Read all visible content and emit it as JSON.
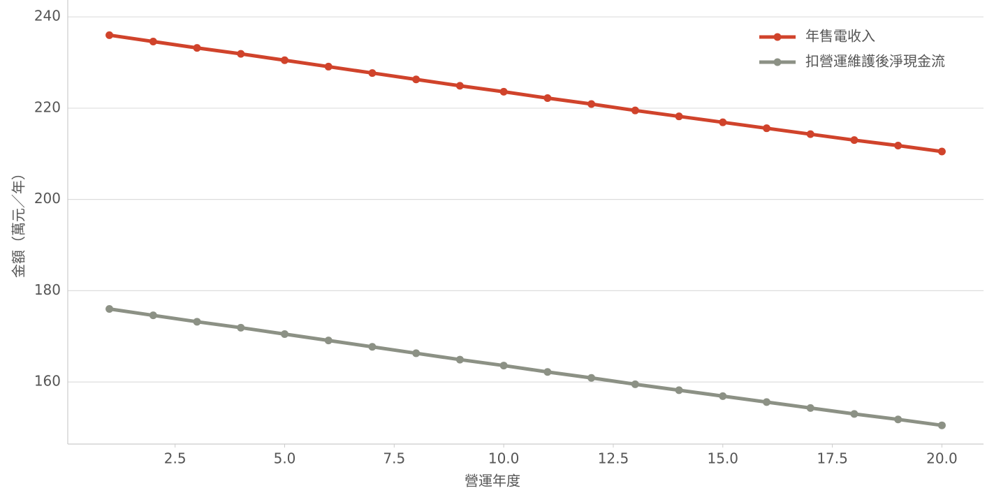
{
  "chart_data": {
    "type": "line",
    "x_label": "營運年度",
    "y_label": "金額（萬元／年）",
    "x": [
      1,
      2,
      3,
      4,
      5,
      6,
      7,
      8,
      9,
      10,
      11,
      12,
      13,
      14,
      15,
      16,
      17,
      18,
      19,
      20
    ],
    "series": [
      {
        "name": "年售電收入",
        "color": "#d0432b",
        "values": [
          236.0,
          234.6,
          233.2,
          231.9,
          230.5,
          229.1,
          227.7,
          226.3,
          224.9,
          223.6,
          222.2,
          220.9,
          219.5,
          218.2,
          216.9,
          215.6,
          214.3,
          213.0,
          211.8,
          210.5
        ]
      },
      {
        "name": "扣營運維護後淨現金流",
        "color": "#8c9185",
        "values": [
          176.0,
          174.6,
          173.2,
          171.9,
          170.5,
          169.1,
          167.7,
          166.3,
          164.9,
          163.6,
          162.2,
          160.9,
          159.5,
          158.2,
          156.9,
          155.6,
          154.3,
          153.0,
          151.8,
          150.5
        ]
      }
    ],
    "xlim": [
      0.05,
      20.95
    ],
    "xticks": [
      2.5,
      {
        "value": 5,
        "label": "5.0"
      },
      7.5,
      {
        "value": 10,
        "label": "10.0"
      },
      12.5,
      {
        "value": 15,
        "label": "15.0"
      },
      17.5,
      {
        "value": 20,
        "label": "20.0"
      }
    ],
    "ylim": [
      146.4,
      243.7
    ],
    "yticks": [
      160,
      180,
      200,
      220,
      240
    ],
    "grid": true,
    "legend": "upper right"
  }
}
